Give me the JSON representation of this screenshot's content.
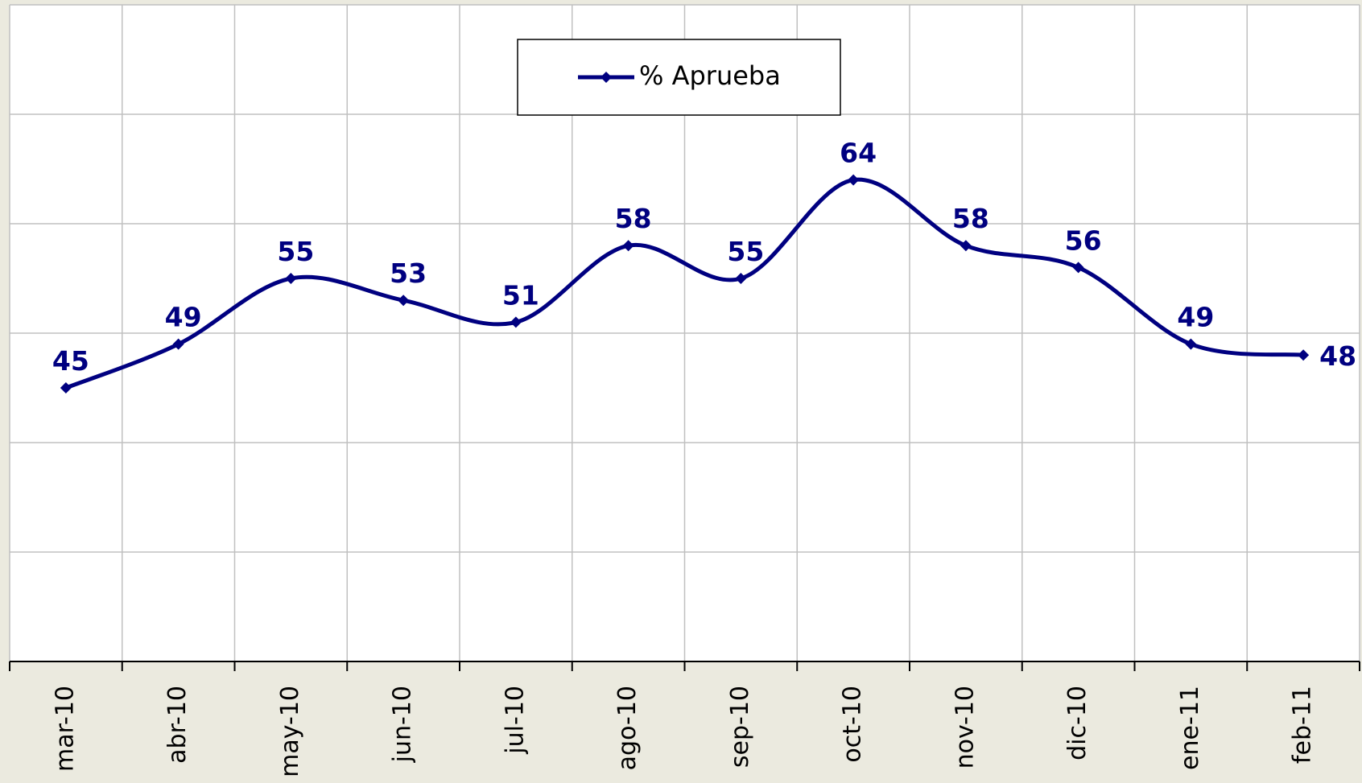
{
  "chart_data": {
    "type": "line",
    "categories": [
      "mar-10",
      "abr-10",
      "may-10",
      "jun-10",
      "jul-10",
      "ago-10",
      "sep-10",
      "oct-10",
      "nov-10",
      "dic-10",
      "ene-11",
      "feb-11"
    ],
    "series": [
      {
        "name": "% Aprueba",
        "color": "#000080",
        "values": [
          45,
          49,
          55,
          53,
          51,
          58,
          55,
          64,
          58,
          56,
          49,
          48
        ]
      }
    ],
    "ylim": [
      20,
      80
    ],
    "yticks": [
      20,
      30,
      40,
      50,
      60,
      70,
      80
    ],
    "grid": true,
    "smooth": true,
    "legend": "top"
  }
}
